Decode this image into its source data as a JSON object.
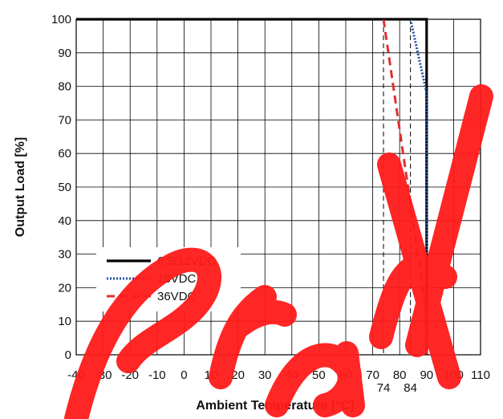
{
  "chart_data": {
    "type": "line",
    "xlabel": "Ambient Temperature [°C]",
    "ylabel": "Output Load [%]",
    "xlim": [
      -40,
      110
    ],
    "ylim": [
      0,
      100
    ],
    "x_ticks": [
      -40,
      -30,
      -20,
      -10,
      0,
      10,
      20,
      30,
      40,
      50,
      60,
      70,
      80,
      90,
      100,
      110
    ],
    "x_ticks_labels": [
      "-40",
      "-30",
      "-20",
      "-10",
      "0",
      "10",
      "20",
      "30",
      "40",
      "50",
      "60",
      "70",
      "80",
      "90",
      "100",
      "110"
    ],
    "y_ticks": [
      0,
      10,
      20,
      30,
      40,
      50,
      60,
      70,
      80,
      90,
      100
    ],
    "y_ticks_labels": [
      "0",
      "10",
      "20",
      "30",
      "40",
      "50",
      "60",
      "70",
      "80",
      "90",
      "100"
    ],
    "grid": true,
    "legend_position": "bottom-left",
    "series": [
      {
        "name": "6.5/12VDC",
        "color": "#000000",
        "style": "solid",
        "x": [
          -40,
          90,
          90
        ],
        "y": [
          100,
          100,
          0
        ]
      },
      {
        "name": "18VDC",
        "color": "#1f4e9c",
        "style": "dotted",
        "x": [
          84,
          90,
          90
        ],
        "y": [
          100,
          78,
          0
        ]
      },
      {
        "name": "36VDC",
        "color": "#e03030",
        "style": "dashed",
        "x": [
          74,
          90,
          90
        ],
        "y": [
          100,
          12,
          0
        ]
      }
    ],
    "annotations": [
      {
        "x": 74,
        "label": "74",
        "style": "dashed-vertical"
      },
      {
        "x": 84,
        "label": "84",
        "style": "dashed-vertical"
      }
    ]
  },
  "watermark": {
    "text": "Preliminary",
    "color": "#ff1a1a"
  }
}
